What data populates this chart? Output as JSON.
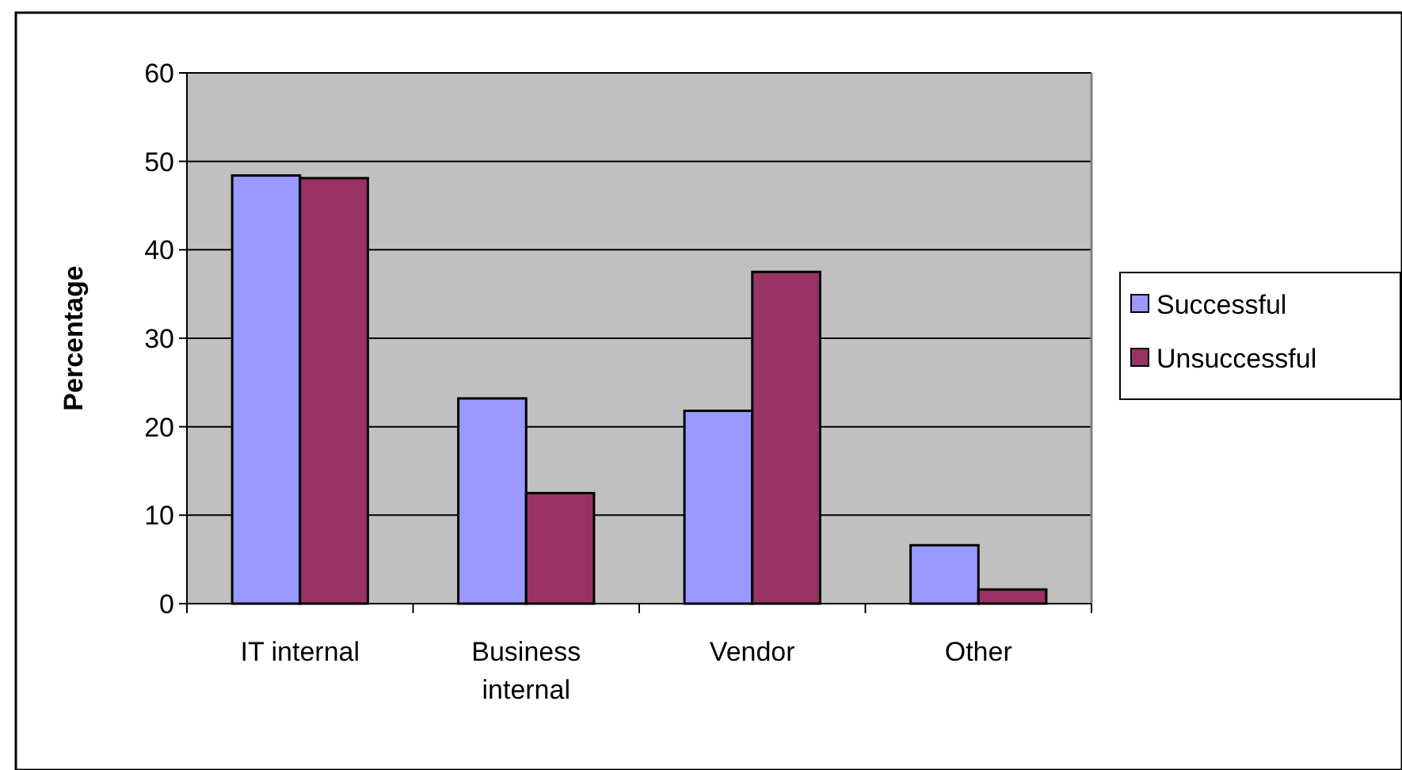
{
  "chart_data": {
    "type": "bar",
    "ylabel": "Percentage",
    "categories": [
      "IT internal",
      "Business internal",
      "Vendor",
      "Other"
    ],
    "series": [
      {
        "name": "Successful",
        "color": "#9999ff",
        "values": [
          48.4,
          23.2,
          21.8,
          6.6
        ]
      },
      {
        "name": "Unsuccessful",
        "color": "#993366",
        "values": [
          48.1,
          12.5,
          37.5,
          1.6
        ]
      }
    ],
    "ylim": [
      0,
      60
    ],
    "yticks": [
      0,
      10,
      20,
      30,
      40,
      50,
      60
    ],
    "grid": "y",
    "legend": "right"
  }
}
